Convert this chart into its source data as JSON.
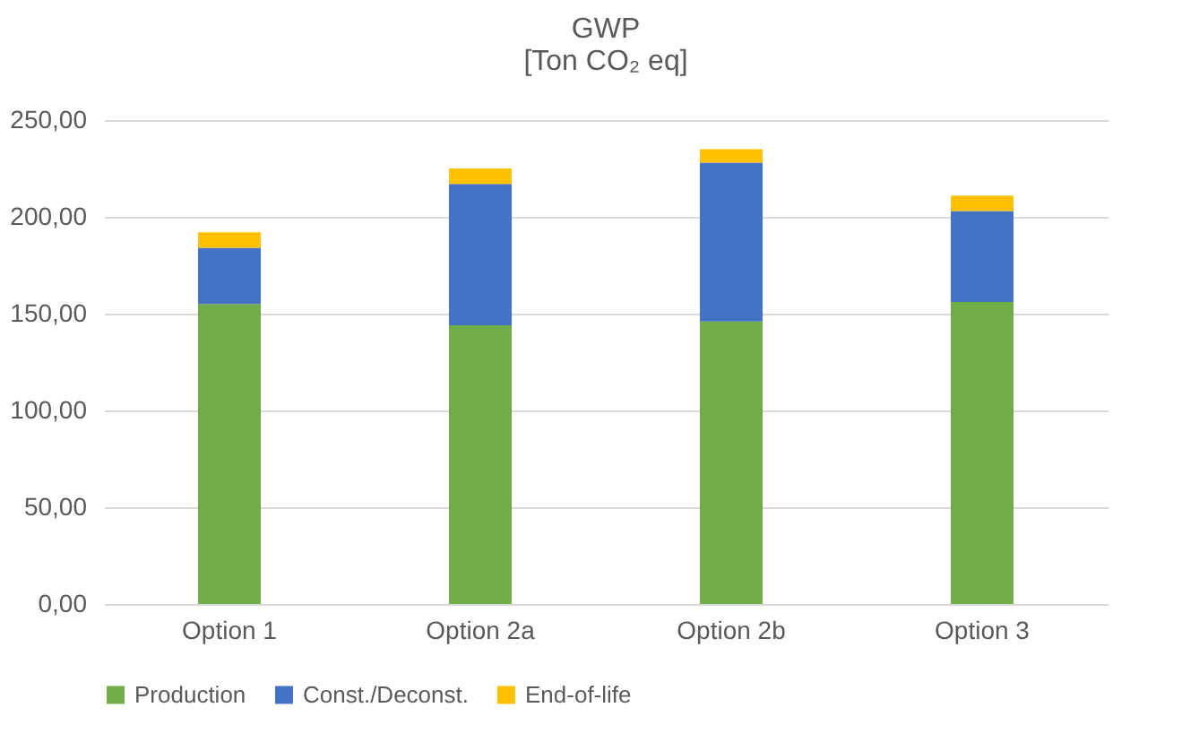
{
  "chart_data": {
    "type": "bar",
    "title": "GWP",
    "subtitle": "[Ton CO₂ eq]",
    "categories": [
      "Option 1",
      "Option 2a",
      "Option 2b",
      "Option 3"
    ],
    "stacked": true,
    "series": [
      {
        "name": "Production",
        "color": "#70ad47",
        "values": [
          155,
          144,
          146,
          156
        ]
      },
      {
        "name": "Const./Deconst.",
        "color": "#4472c4",
        "values": [
          29,
          73,
          82,
          47
        ]
      },
      {
        "name": "End-of-life",
        "color": "#ffc000",
        "values": [
          8,
          8,
          7,
          8
        ]
      }
    ],
    "ylim": [
      0,
      250
    ],
    "yticks": [
      {
        "value": 0,
        "label": "0,00"
      },
      {
        "value": 50,
        "label": "50,00"
      },
      {
        "value": 100,
        "label": "100,00"
      },
      {
        "value": 150,
        "label": "150,00"
      },
      {
        "value": 200,
        "label": "200,00"
      },
      {
        "value": 250,
        "label": "250,00"
      }
    ],
    "grid": "y",
    "legend": "bottom"
  }
}
